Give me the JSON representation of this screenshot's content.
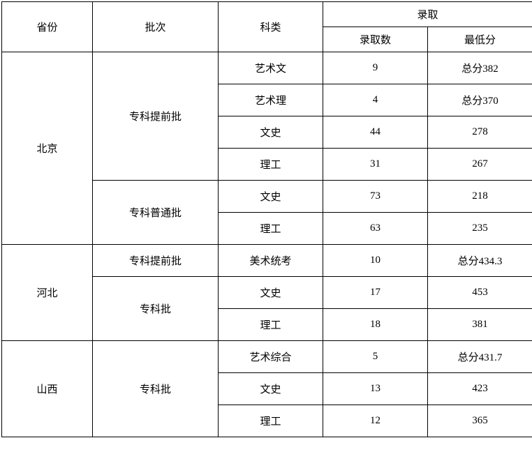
{
  "headers": {
    "province": "省份",
    "batch": "批次",
    "category": "科类",
    "admission": "录取",
    "admission_count": "录取数",
    "min_score": "最低分"
  },
  "rows": [
    {
      "province": "北京",
      "province_rowspan": 6,
      "batch": "专科提前批",
      "batch_rowspan": 4,
      "category": "艺术文",
      "count": "9",
      "score": "总分382"
    },
    {
      "category": "艺术理",
      "count": "4",
      "score": "总分370"
    },
    {
      "category": "文史",
      "count": "44",
      "score": "278"
    },
    {
      "category": "理工",
      "count": "31",
      "score": "267"
    },
    {
      "batch": "专科普通批",
      "batch_rowspan": 2,
      "category": "文史",
      "count": "73",
      "score": "218"
    },
    {
      "category": "理工",
      "count": "63",
      "score": "235"
    },
    {
      "province": "河北",
      "province_rowspan": 3,
      "batch": "专科提前批",
      "batch_rowspan": 1,
      "category": "美术统考",
      "count": "10",
      "score": "总分434.3"
    },
    {
      "batch": "专科批",
      "batch_rowspan": 2,
      "category": "文史",
      "count": "17",
      "score": "453"
    },
    {
      "category": "理工",
      "count": "18",
      "score": "381"
    },
    {
      "province": "山西",
      "province_rowspan": 3,
      "batch": "专科批",
      "batch_rowspan": 3,
      "category": "艺术综合",
      "count": "5",
      "score": "总分431.7"
    },
    {
      "category": "文史",
      "count": "13",
      "score": "423"
    },
    {
      "category": "理工",
      "count": "12",
      "score": "365"
    }
  ]
}
